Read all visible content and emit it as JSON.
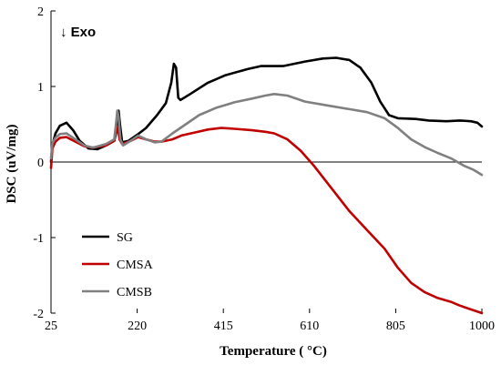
{
  "chart_data": {
    "type": "line",
    "title": "",
    "xlabel": "Temperature ( °C)",
    "ylabel": "DSC (uV/mg)",
    "xlim": [
      25,
      1000
    ],
    "ylim": [
      -2,
      2
    ],
    "x_ticks": [
      25,
      220,
      415,
      610,
      805,
      1000
    ],
    "y_ticks": [
      -2,
      -1,
      0,
      1,
      2
    ],
    "grid": false,
    "legend_position": "bottom-left",
    "annotation": "↓ Exo",
    "series": [
      {
        "name": "SG",
        "color": "#000000",
        "points": [
          [
            25,
            0.0
          ],
          [
            28,
            0.22
          ],
          [
            35,
            0.38
          ],
          [
            45,
            0.48
          ],
          [
            60,
            0.52
          ],
          [
            75,
            0.42
          ],
          [
            90,
            0.28
          ],
          [
            110,
            0.18
          ],
          [
            130,
            0.17
          ],
          [
            150,
            0.22
          ],
          [
            168,
            0.28
          ],
          [
            175,
            0.45
          ],
          [
            178,
            0.68
          ],
          [
            181,
            0.5
          ],
          [
            186,
            0.26
          ],
          [
            200,
            0.28
          ],
          [
            220,
            0.36
          ],
          [
            240,
            0.45
          ],
          [
            265,
            0.62
          ],
          [
            285,
            0.78
          ],
          [
            297,
            1.05
          ],
          [
            303,
            1.3
          ],
          [
            308,
            1.25
          ],
          [
            313,
            0.85
          ],
          [
            318,
            0.82
          ],
          [
            340,
            0.9
          ],
          [
            380,
            1.05
          ],
          [
            420,
            1.15
          ],
          [
            470,
            1.23
          ],
          [
            500,
            1.27
          ],
          [
            550,
            1.27
          ],
          [
            600,
            1.33
          ],
          [
            640,
            1.37
          ],
          [
            670,
            1.38
          ],
          [
            700,
            1.35
          ],
          [
            725,
            1.25
          ],
          [
            750,
            1.05
          ],
          [
            770,
            0.8
          ],
          [
            790,
            0.62
          ],
          [
            810,
            0.58
          ],
          [
            850,
            0.57
          ],
          [
            880,
            0.55
          ],
          [
            920,
            0.54
          ],
          [
            950,
            0.55
          ],
          [
            975,
            0.54
          ],
          [
            990,
            0.52
          ],
          [
            1000,
            0.47
          ]
        ]
      },
      {
        "name": "CMSA",
        "color": "#c00000",
        "points": [
          [
            25,
            -0.08
          ],
          [
            28,
            0.18
          ],
          [
            35,
            0.27
          ],
          [
            45,
            0.32
          ],
          [
            60,
            0.33
          ],
          [
            80,
            0.27
          ],
          [
            100,
            0.21
          ],
          [
            120,
            0.19
          ],
          [
            150,
            0.22
          ],
          [
            168,
            0.28
          ],
          [
            173,
            0.4
          ],
          [
            176,
            0.47
          ],
          [
            180,
            0.3
          ],
          [
            186,
            0.24
          ],
          [
            205,
            0.28
          ],
          [
            222,
            0.33
          ],
          [
            240,
            0.3
          ],
          [
            260,
            0.27
          ],
          [
            275,
            0.27
          ],
          [
            300,
            0.3
          ],
          [
            320,
            0.35
          ],
          [
            350,
            0.39
          ],
          [
            380,
            0.43
          ],
          [
            410,
            0.45
          ],
          [
            440,
            0.44
          ],
          [
            480,
            0.42
          ],
          [
            510,
            0.4
          ],
          [
            530,
            0.38
          ],
          [
            560,
            0.3
          ],
          [
            590,
            0.15
          ],
          [
            620,
            -0.05
          ],
          [
            660,
            -0.35
          ],
          [
            700,
            -0.65
          ],
          [
            740,
            -0.9
          ],
          [
            780,
            -1.15
          ],
          [
            810,
            -1.4
          ],
          [
            840,
            -1.6
          ],
          [
            870,
            -1.72
          ],
          [
            900,
            -1.8
          ],
          [
            930,
            -1.85
          ],
          [
            950,
            -1.9
          ],
          [
            975,
            -1.95
          ],
          [
            1000,
            -2.0
          ]
        ]
      },
      {
        "name": "CMSB",
        "color": "#808080",
        "points": [
          [
            25,
            0.05
          ],
          [
            28,
            0.25
          ],
          [
            35,
            0.32
          ],
          [
            45,
            0.37
          ],
          [
            60,
            0.38
          ],
          [
            80,
            0.3
          ],
          [
            100,
            0.22
          ],
          [
            120,
            0.19
          ],
          [
            150,
            0.24
          ],
          [
            168,
            0.3
          ],
          [
            172,
            0.5
          ],
          [
            175,
            0.68
          ],
          [
            178,
            0.6
          ],
          [
            182,
            0.3
          ],
          [
            188,
            0.22
          ],
          [
            205,
            0.28
          ],
          [
            222,
            0.35
          ],
          [
            240,
            0.3
          ],
          [
            260,
            0.26
          ],
          [
            275,
            0.27
          ],
          [
            300,
            0.38
          ],
          [
            330,
            0.5
          ],
          [
            360,
            0.62
          ],
          [
            400,
            0.72
          ],
          [
            440,
            0.79
          ],
          [
            480,
            0.84
          ],
          [
            510,
            0.88
          ],
          [
            530,
            0.9
          ],
          [
            560,
            0.88
          ],
          [
            600,
            0.8
          ],
          [
            650,
            0.75
          ],
          [
            700,
            0.7
          ],
          [
            740,
            0.66
          ],
          [
            780,
            0.58
          ],
          [
            810,
            0.45
          ],
          [
            840,
            0.3
          ],
          [
            870,
            0.2
          ],
          [
            900,
            0.12
          ],
          [
            930,
            0.05
          ],
          [
            960,
            -0.05
          ],
          [
            980,
            -0.1
          ],
          [
            1000,
            -0.17
          ]
        ]
      }
    ]
  }
}
